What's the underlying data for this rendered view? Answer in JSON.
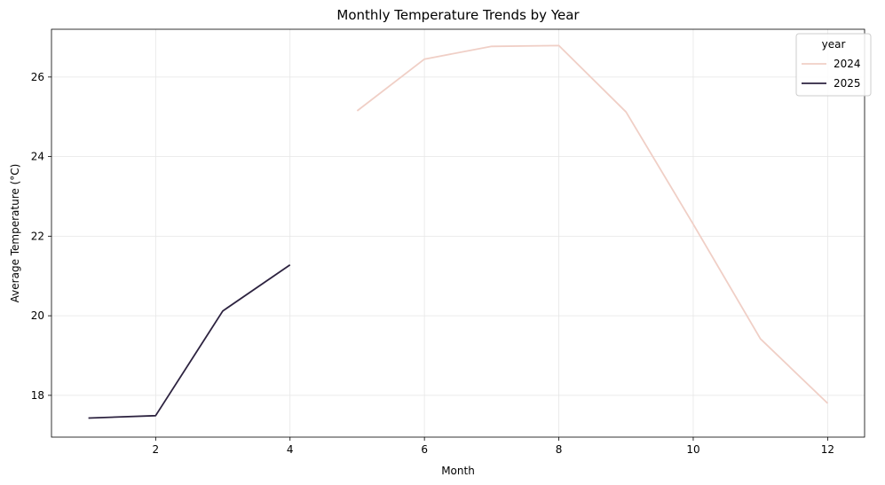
{
  "chart_data": {
    "type": "line",
    "title": "Monthly Temperature Trends by Year",
    "xlabel": "Month",
    "ylabel": "Average Temperature (°C)",
    "xlim": [
      0.45,
      12.55
    ],
    "ylim": [
      16.95,
      27.2
    ],
    "xticks": [
      2,
      4,
      6,
      8,
      10,
      12
    ],
    "yticks": [
      18,
      20,
      22,
      24,
      26
    ],
    "grid": true,
    "legend": {
      "title": "year",
      "placement": "top-right"
    },
    "series": [
      {
        "name": "2024",
        "color": "#f0cfc6",
        "x": [
          5,
          6,
          7,
          8,
          9,
          10,
          11,
          12
        ],
        "y": [
          25.15,
          26.45,
          26.77,
          26.79,
          25.12,
          22.3,
          19.42,
          17.8
        ]
      },
      {
        "name": "2025",
        "color": "#2d2340",
        "x": [
          1,
          2,
          3,
          4
        ],
        "y": [
          17.43,
          17.49,
          20.12,
          21.28
        ]
      }
    ]
  }
}
